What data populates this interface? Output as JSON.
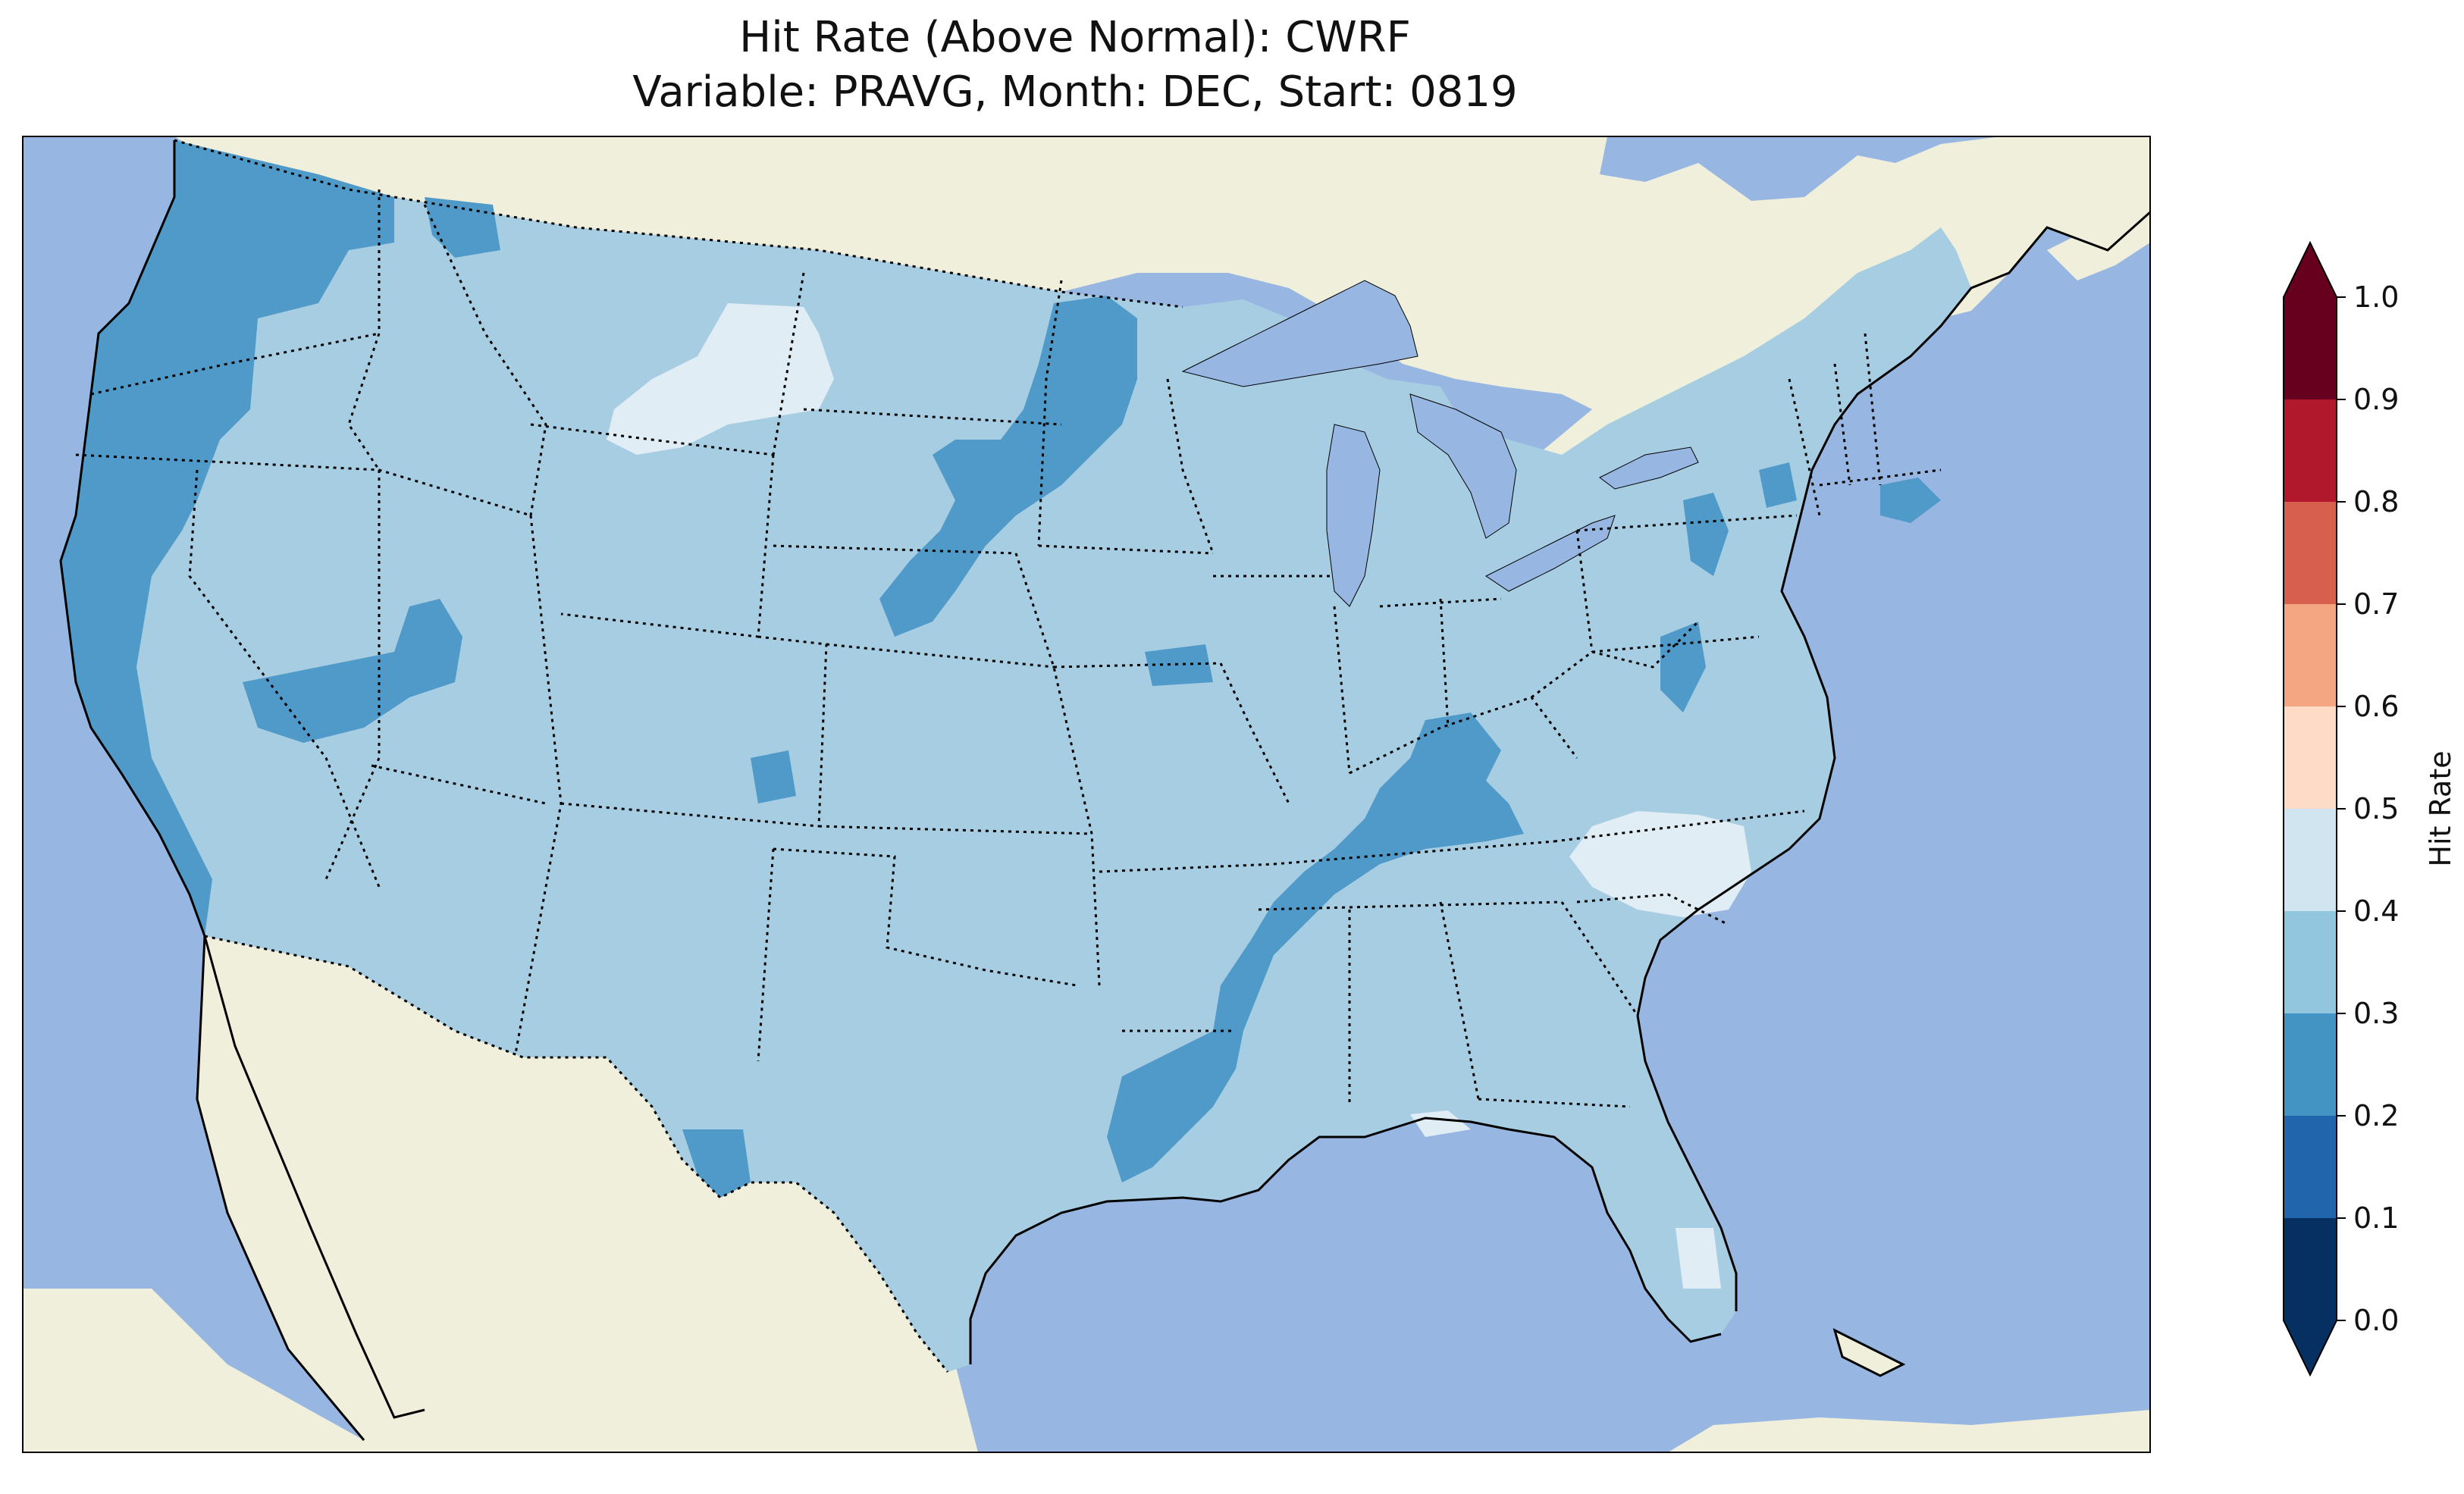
{
  "title": "Hit Rate (Above Normal): CWRF",
  "subtitle": "Variable: PRAVG, Month: DEC, Start: 0819",
  "colorbar": {
    "label": "Hit Rate",
    "ticks": [
      "0.0",
      "0.1",
      "0.2",
      "0.3",
      "0.4",
      "0.5",
      "0.6",
      "0.7",
      "0.8",
      "0.9",
      "1.0"
    ],
    "colors": [
      "#053061",
      "#2166ac",
      "#4393c3",
      "#92c5de",
      "#d1e5f0",
      "#fddbc7",
      "#f4a582",
      "#d6604d",
      "#b2182b",
      "#67001f"
    ],
    "extend": "both"
  },
  "map_colors": {
    "ocean": "#97b6e1",
    "land": "#efefdc",
    "class_0.2_0.3": "#4f9ac8",
    "class_0.3_0.4": "#a7cde3",
    "class_0.4_0.5": "#e1edf4"
  }
}
